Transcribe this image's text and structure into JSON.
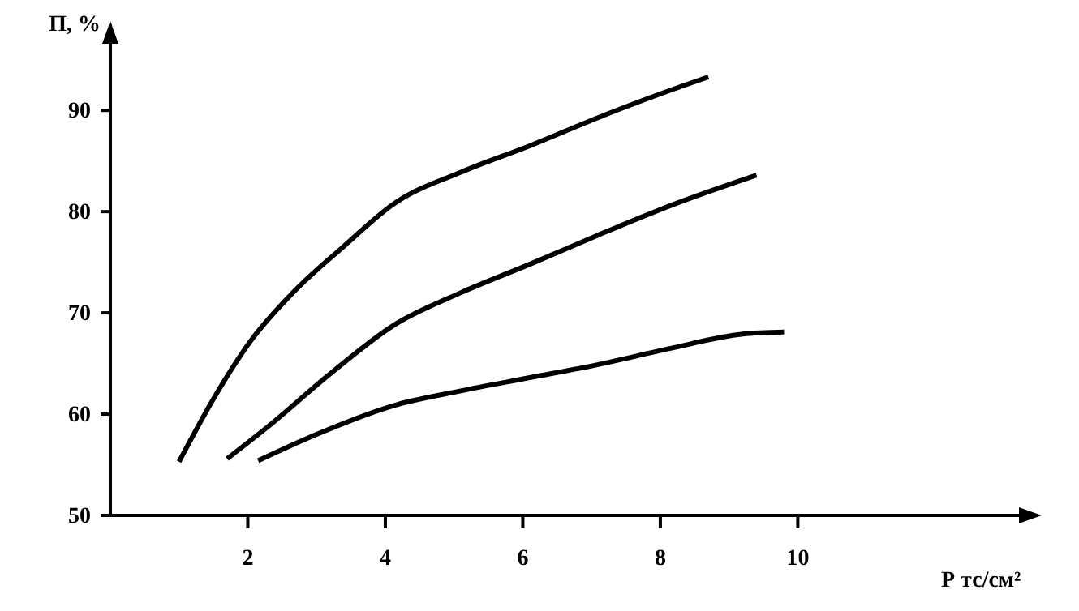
{
  "chart_data": {
    "type": "line",
    "xlabel": "Р тс/см²",
    "ylabel": "П, %",
    "xlim": [
      0,
      13.5
    ],
    "ylim": [
      50,
      98.5
    ],
    "xticks": [
      2,
      4,
      6,
      8,
      10
    ],
    "yticks": [
      50,
      60,
      70,
      80,
      90
    ],
    "grid": false,
    "series": [
      {
        "color": "#000000",
        "x": [
          1.0,
          1.5,
          2.05,
          2.7,
          3.4,
          4.15,
          5.1,
          6.1,
          7.1,
          8.15,
          8.7
        ],
        "values": [
          55.3,
          61.5,
          67.3,
          72.3,
          76.6,
          80.9,
          83.9,
          86.5,
          89.3,
          92.0,
          93.3
        ]
      },
      {
        "color": "#000000",
        "x": [
          1.7,
          2.3,
          3.2,
          4.15,
          5.1,
          6.1,
          7.1,
          8.15,
          9.4
        ],
        "values": [
          55.6,
          58.8,
          64.0,
          68.9,
          72.0,
          74.8,
          77.7,
          80.6,
          83.6
        ]
      },
      {
        "color": "#000000",
        "x": [
          2.15,
          3.0,
          4.15,
          5.1,
          6.1,
          7.1,
          8.15,
          9.2,
          9.8
        ],
        "values": [
          55.4,
          58.0,
          60.9,
          62.3,
          63.6,
          64.9,
          66.5,
          67.9,
          68.1
        ]
      }
    ]
  }
}
